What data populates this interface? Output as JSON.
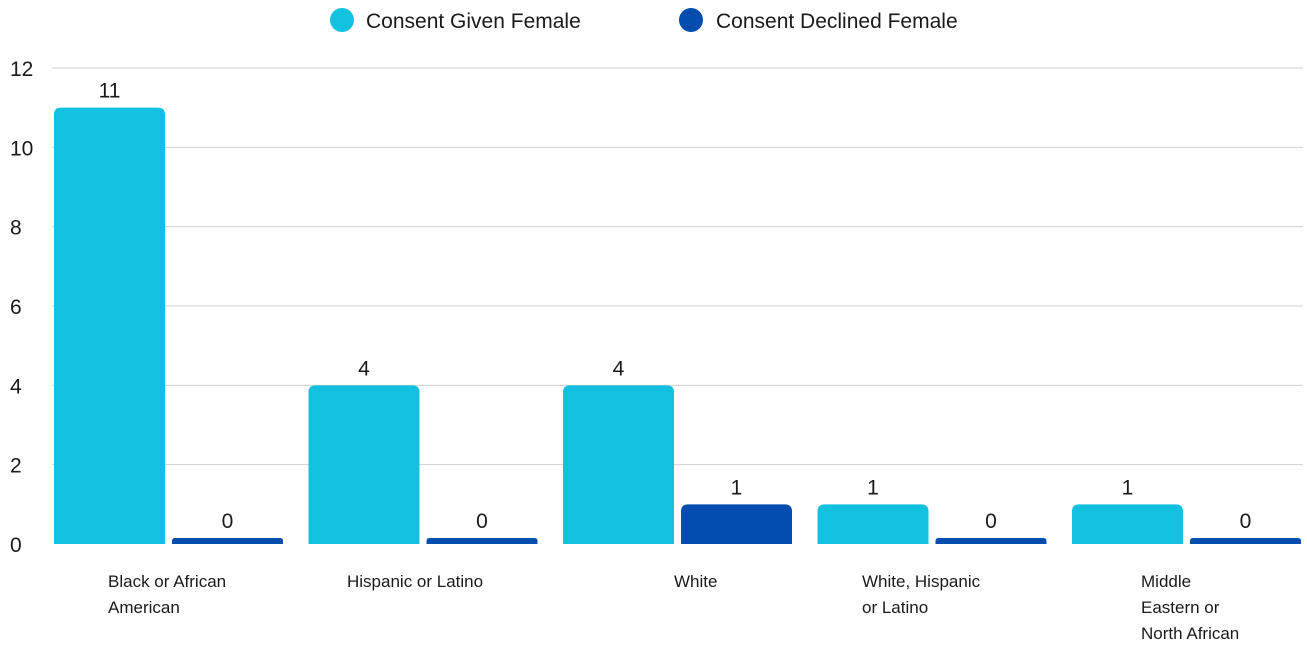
{
  "chart_data": {
    "type": "bar",
    "title": "",
    "xlabel": "",
    "ylabel": "",
    "categories": [
      [
        "Black or African",
        "American"
      ],
      [
        "Hispanic or Latino"
      ],
      [
        "White"
      ],
      [
        "White, Hispanic",
        "or Latino"
      ],
      [
        "Middle",
        "Eastern or",
        "North African"
      ]
    ],
    "series": [
      {
        "name": "Consent Given Female",
        "color": "#12C0E0",
        "values": [
          11,
          4,
          4,
          1,
          1
        ]
      },
      {
        "name": "Consent Declined Female",
        "color": "#024DAE",
        "values": [
          0,
          0,
          1,
          0,
          0
        ]
      }
    ],
    "ylim": [
      0,
      12
    ],
    "yticks": [
      0,
      2,
      4,
      6,
      8,
      10,
      12
    ],
    "grid": true,
    "legend_position": "top-center",
    "gridline_color": "#d0d0d0"
  }
}
